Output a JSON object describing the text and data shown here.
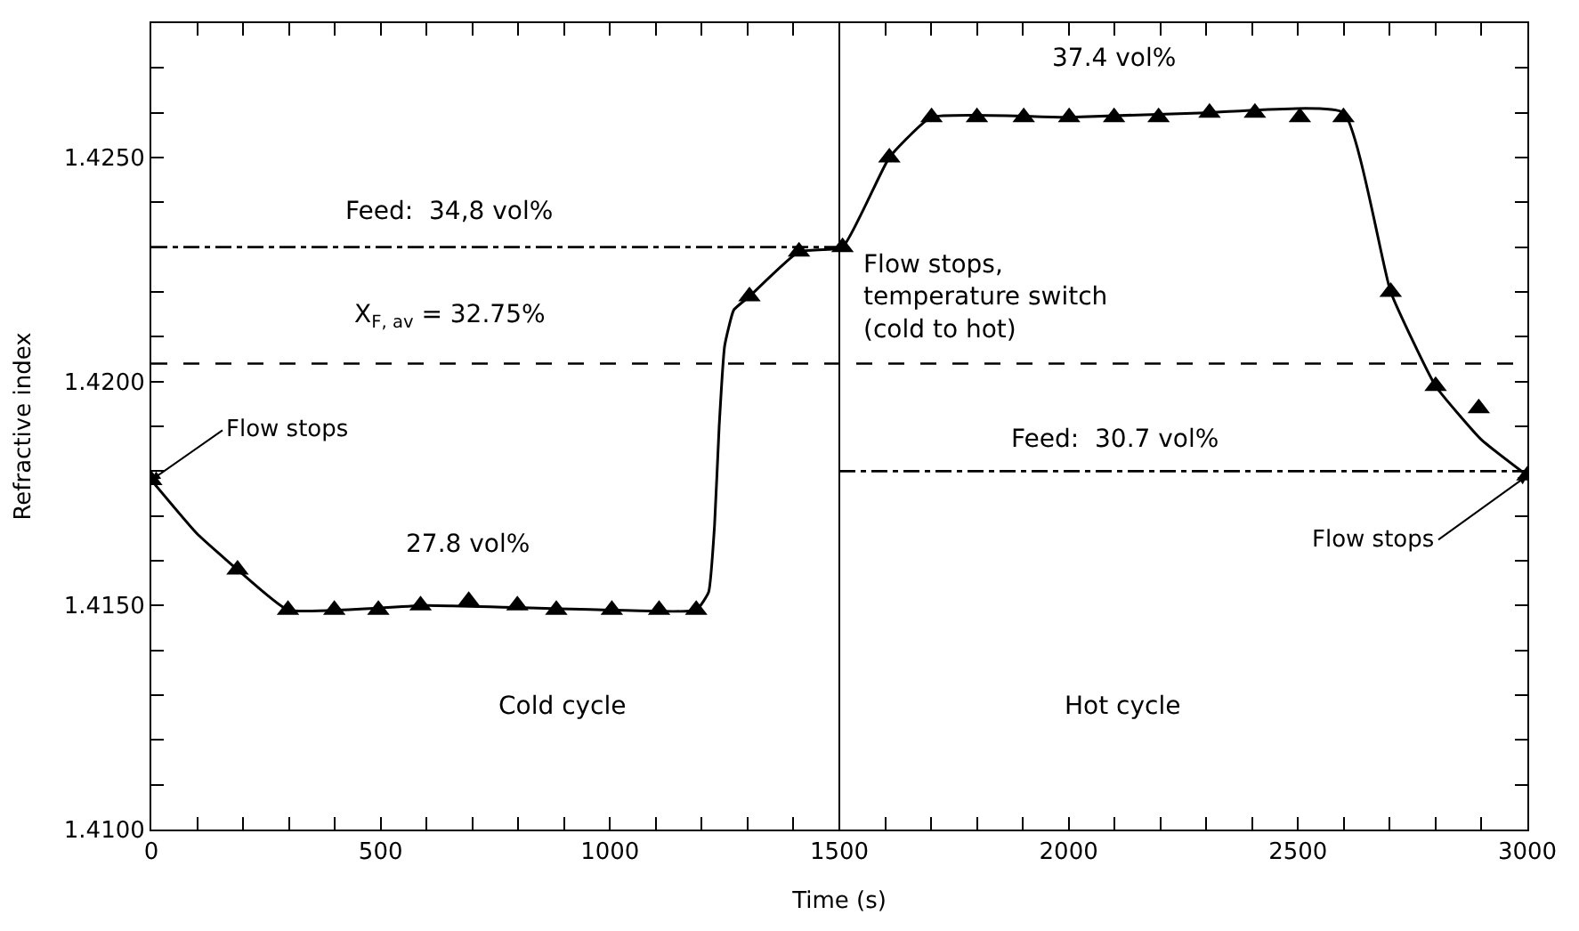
{
  "chart_data": {
    "type": "line",
    "xlabel": "Time (s)",
    "ylabel": "Refractive index",
    "xlim": [
      0,
      3000
    ],
    "ylim": [
      1.41,
      1.428
    ],
    "xticks": [
      0,
      {
        "value": 100,
        "label": null
      },
      {
        "value": 200,
        "label": null
      },
      {
        "value": 300,
        "label": null
      },
      {
        "value": 400,
        "label": null
      },
      500,
      {
        "value": 600,
        "label": null
      },
      {
        "value": 700,
        "label": null
      },
      {
        "value": 800,
        "label": null
      },
      {
        "value": 900,
        "label": null
      },
      1000,
      {
        "value": 1100,
        "label": null
      },
      {
        "value": 1200,
        "label": null
      },
      {
        "value": 1300,
        "label": null
      },
      {
        "value": 1400,
        "label": null
      },
      1500,
      {
        "value": 1600,
        "label": null
      },
      {
        "value": 1700,
        "label": null
      },
      {
        "value": 1800,
        "label": null
      },
      {
        "value": 1900,
        "label": null
      },
      2000,
      {
        "value": 2100,
        "label": null
      },
      {
        "value": 2200,
        "label": null
      },
      {
        "value": 2300,
        "label": null
      },
      {
        "value": 2400,
        "label": null
      },
      2500,
      {
        "value": 2600,
        "label": null
      },
      {
        "value": 2700,
        "label": null
      },
      {
        "value": 2800,
        "label": null
      },
      {
        "value": 2900,
        "label": null
      },
      3000
    ],
    "yticks": [
      {
        "value": 1.41,
        "label": "1.4100"
      },
      {
        "value": 1.411,
        "label": null
      },
      {
        "value": 1.412,
        "label": null
      },
      {
        "value": 1.413,
        "label": null
      },
      {
        "value": 1.414,
        "label": null
      },
      {
        "value": 1.415,
        "label": "1.4150"
      },
      {
        "value": 1.416,
        "label": null
      },
      {
        "value": 1.417,
        "label": null
      },
      {
        "value": 1.418,
        "label": null
      },
      {
        "value": 1.419,
        "label": null
      },
      {
        "value": 1.42,
        "label": "1.4200"
      },
      {
        "value": 1.421,
        "label": null
      },
      {
        "value": 1.422,
        "label": null
      },
      {
        "value": 1.423,
        "label": null
      },
      {
        "value": 1.424,
        "label": null
      },
      {
        "value": 1.425,
        "label": "1.4250"
      },
      {
        "value": 1.426,
        "label": null
      },
      {
        "value": 1.427,
        "label": null
      }
    ],
    "series": [
      {
        "color": "#000000",
        "marker": "none",
        "line_style": "solid",
        "x": [
          0,
          100,
          188,
          298,
          600,
          1000,
          1188,
          1215,
          1228,
          1238,
          1250,
          1270,
          1304,
          1412,
          1507,
          1609,
          1701,
          2000,
          2300,
          2599,
          2702,
          2800,
          2900,
          3000
        ],
        "values": [
          1.4178,
          1.4166,
          1.4158,
          1.4149,
          1.415,
          1.4149,
          1.4149,
          1.4153,
          1.4168,
          1.419,
          1.4208,
          1.4216,
          1.4219,
          1.4229,
          1.423,
          1.425,
          1.4259,
          1.4259,
          1.426,
          1.426,
          1.422,
          1.4199,
          1.4187,
          1.4179
        ]
      },
      {
        "type": "scatter",
        "color": "#000000",
        "marker": "triangle",
        "x": [
          0,
          188,
          298,
          399,
          495,
          587,
          692,
          798,
          883,
          1004,
          1107,
          1188,
          1304,
          1412,
          1507,
          1609,
          1701,
          1800,
          1902,
          2001,
          2099,
          2196,
          2307,
          2406,
          2504,
          2599,
          2702,
          2800,
          2894,
          3000
        ],
        "values": [
          1.4178,
          1.4158,
          1.4149,
          1.4149,
          1.4149,
          1.415,
          1.4151,
          1.415,
          1.4149,
          1.4149,
          1.4149,
          1.4149,
          1.4219,
          1.4229,
          1.423,
          1.425,
          1.4259,
          1.4259,
          1.4259,
          1.4259,
          1.4259,
          1.4259,
          1.426,
          1.426,
          1.4259,
          1.4259,
          1.422,
          1.4199,
          1.4194,
          1.4179
        ]
      },
      {
        "type": "line",
        "color": "#000000",
        "marker": "none",
        "line_style": "dashdot",
        "x": [
          0,
          1500
        ],
        "values": [
          1.423,
          1.423
        ]
      },
      {
        "type": "line",
        "color": "#000000",
        "marker": "none",
        "line_style": "dashdot",
        "x": [
          1500,
          3000
        ],
        "values": [
          1.418,
          1.418
        ]
      }
    ],
    "ref_lines": [
      {
        "axis": "y",
        "value": 1.4204,
        "color": "#000000",
        "line_style": "dashed"
      },
      {
        "axis": "x",
        "value": 1500,
        "color": "#000000",
        "line_style": "solid"
      }
    ],
    "annotations": [
      {
        "text": "Feed:  34,8 vol%",
        "x": 650,
        "y": 1.423
      },
      {
        "text": "X$_{F, av}$ = 32.75%",
        "x": 650,
        "y": 1.4204
      },
      {
        "text": "Flow stops",
        "x": 0,
        "y": 1.4178
      },
      {
        "text": "27.8 vol%",
        "x": 690,
        "y": 1.4151
      },
      "Cold cycle",
      {
        "text": "Flow stops,\ntemperature switch\n(cold to hot)",
        "x": 1507,
        "y": 1.423
      },
      {
        "text": "37.4 vol%",
        "x": 2100,
        "y": 1.426
      },
      {
        "text": "Feed:  30.7 vol%",
        "x": 2100,
        "y": 1.418
      },
      {
        "text": "Flow stops",
        "x": 3000,
        "y": 1.4179
      },
      "Hot cycle"
    ]
  }
}
